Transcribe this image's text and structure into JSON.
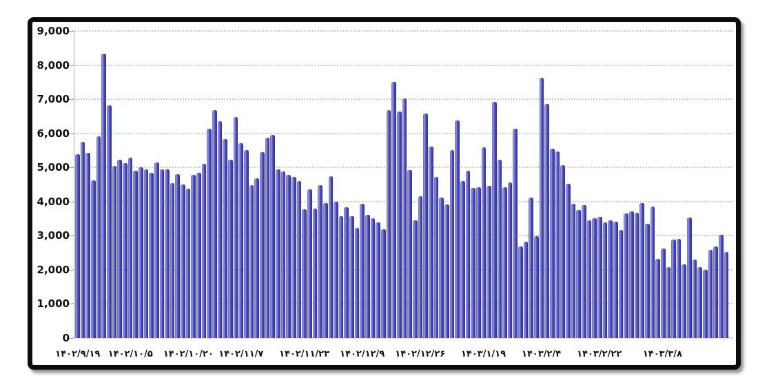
{
  "chart_data": {
    "type": "bar",
    "title": "",
    "xlabel": "",
    "ylabel": "",
    "ylim": [
      0,
      9000
    ],
    "grid": "dotted horizontal",
    "legend": "none",
    "y_tick_values": [
      9000,
      8000,
      7000,
      6000,
      5000,
      4000,
      3000,
      2000,
      1000,
      0
    ],
    "y_tick_labels": [
      "9,000",
      "8,000",
      "7,000",
      "6,000",
      "5,000",
      "4,000",
      "3,000",
      "2,000",
      "1,000",
      "0"
    ],
    "x_tick_labels": [
      "۱۴۰۲/۹/۱۹",
      "۱۴۰۲/۱۰/۵",
      "۱۴۰۲/۱۰/۲۰",
      "۱۴۰۲/۱۱/۷",
      "۱۴۰۲/۱۱/۲۳",
      "۱۴۰۲/۱۲/۹",
      "۱۴۰۲/۱۲/۲۶",
      "۱۴۰۳/۱/۱۹",
      "۱۴۰۳/۲/۴",
      "۱۴۰۳/۲/۲۲",
      "۱۴۰۳/۳/۸"
    ],
    "x_tick_bar_indices": [
      0,
      10,
      21,
      31,
      43,
      54,
      65,
      77,
      88,
      99,
      111
    ],
    "values": [
      5380,
      5760,
      5420,
      4620,
      5910,
      8340,
      6830,
      5040,
      5220,
      5130,
      5280,
      4900,
      5000,
      4950,
      4850,
      5150,
      4950,
      4950,
      4550,
      4800,
      4500,
      4370,
      4780,
      4850,
      5100,
      6140,
      6680,
      6360,
      5825,
      5220,
      6480,
      5720,
      5520,
      4480,
      4680,
      5450,
      5880,
      5950,
      4950,
      4885,
      4790,
      4720,
      4600,
      3780,
      4350,
      3800,
      4480,
      3965,
      4740,
      4000,
      3580,
      3830,
      3575,
      3230,
      3930,
      3610,
      3515,
      3395,
      3180,
      6680,
      7500,
      6630,
      7020,
      4925,
      3450,
      4165,
      6570,
      5620,
      4730,
      4125,
      3910,
      5505,
      6380,
      4595,
      4905,
      4395,
      4415,
      5600,
      4465,
      6930,
      5220,
      4415,
      4570,
      6140,
      2690,
      2825,
      4120,
      2980,
      7625,
      6870,
      5545,
      5460,
      5070,
      4525,
      3930,
      3745,
      3900,
      3450,
      3520,
      3560,
      3400,
      3460,
      3410,
      3160,
      3650,
      3720,
      3680,
      3950,
      3360,
      3850,
      2320,
      2620,
      2070,
      2890,
      2910,
      2170,
      3530,
      2310,
      2070,
      2000,
      2590,
      2690,
      3030,
      2520
    ],
    "colors": {
      "bar_edge_left": "#6666cc",
      "bar_highlight": "#9a9ae8",
      "bar_main": "#4646bc",
      "bar_edge_dark": "#32329e",
      "grid": "#c9c9c9",
      "axis": "#a8a8a8",
      "text": "#111111",
      "frame": "#0c0c0c",
      "background": "#ffffff"
    }
  }
}
